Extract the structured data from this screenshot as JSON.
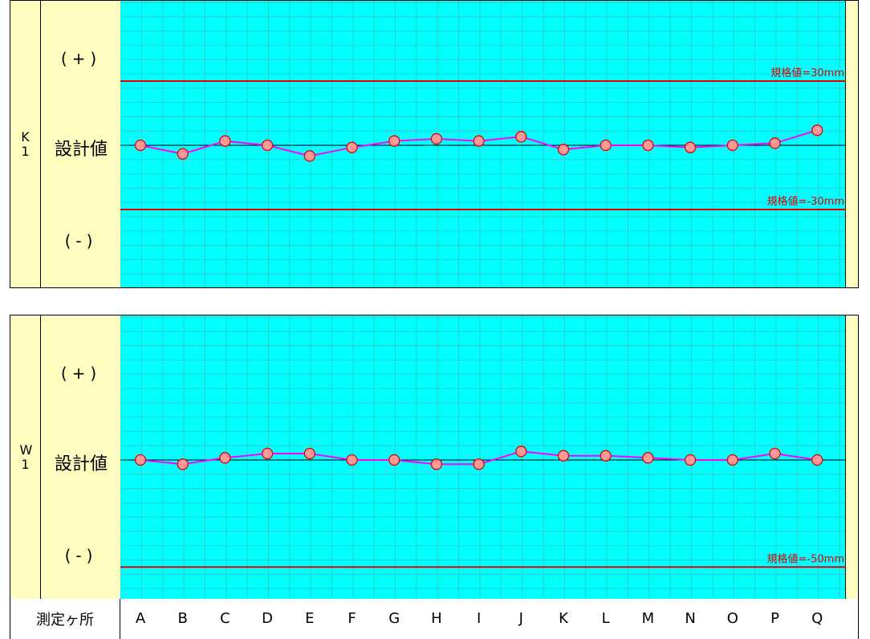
{
  "chart_data": [
    {
      "type": "line",
      "row_label": "K1",
      "ylabel_plus": "(+)",
      "ylabel_design": "設計値",
      "ylabel_minus": "(-)",
      "categories": [
        "A",
        "B",
        "C",
        "D",
        "E",
        "F",
        "G",
        "H",
        "I",
        "J",
        "K",
        "L",
        "M",
        "N",
        "O",
        "P",
        "Q"
      ],
      "values": [
        0,
        -4,
        2,
        0,
        -5,
        -1,
        2,
        3,
        2,
        4,
        -2,
        0,
        0,
        -1,
        0,
        1,
        7
      ],
      "ylim": [
        -66,
        66
      ],
      "limits": [
        {
          "value": 30,
          "label": "規格値=30mm"
        },
        {
          "value": -30,
          "label": "規格値=-30mm"
        }
      ]
    },
    {
      "type": "line",
      "row_label": "W1",
      "ylabel_plus": "(+)",
      "ylabel_design": "設計値",
      "ylabel_minus": "(-)",
      "categories": [
        "A",
        "B",
        "C",
        "D",
        "E",
        "F",
        "G",
        "H",
        "I",
        "J",
        "K",
        "L",
        "M",
        "N",
        "O",
        "P",
        "Q"
      ],
      "values": [
        0,
        -2,
        1,
        3,
        3,
        0,
        0,
        -2,
        -2,
        4,
        2,
        2,
        1,
        0,
        0,
        3,
        0
      ],
      "ylim": [
        -66,
        66
      ],
      "limits": [
        {
          "value": -50,
          "label": "規格値=-50mm"
        }
      ]
    }
  ],
  "footer": {
    "label": "測定ヶ所"
  },
  "colors": {
    "background": "#00ffff",
    "grid": "#33cccc",
    "limit_line": "#e00000",
    "series": "#ff00ff",
    "marker_fill": "#ff9999",
    "marker_edge": "#e00000",
    "label_panel": "#fffcc0"
  }
}
